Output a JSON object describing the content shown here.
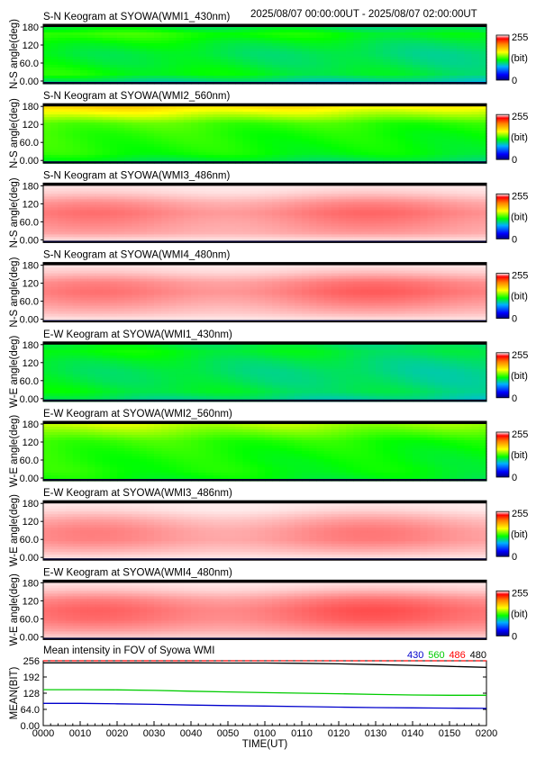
{
  "header": {
    "time_range": "2025/08/07 00:00:00UT - 2025/08/07 02:00:00UT"
  },
  "colorbar": {
    "max_label": "255",
    "min_label": "0",
    "unit": "(bit)"
  },
  "keograms": [
    {
      "title": "S-N Keogram at SYOWA(WMI1_430nm)",
      "ylabel": "N-S angle(deg)",
      "colormap": "rainbow",
      "yticks": [
        "180",
        "120",
        "60.0",
        "0.00"
      ],
      "mean_profile": [
        0.35,
        0.62,
        0.55,
        0.52,
        0.58,
        0.7,
        0.45
      ],
      "trend_start": 0.95,
      "trend_end": 0.7
    },
    {
      "title": "S-N Keogram at SYOWA(WMI2_560nm)",
      "ylabel": "N-S angle(deg)",
      "colormap": "rainbow",
      "yticks": [
        "180",
        "120",
        "60.0",
        "0.00"
      ],
      "mean_profile": [
        0.45,
        0.6,
        0.62,
        0.64,
        0.7,
        0.95,
        1.2
      ],
      "trend_start": 1.0,
      "trend_end": 0.85
    },
    {
      "title": "S-N Keogram at SYOWA(WMI3_486nm)",
      "ylabel": "N-S angle(deg)",
      "colormap": "red",
      "yticks": [
        "180",
        "120",
        "60.0",
        "0.00"
      ],
      "mean_profile": [
        0.05,
        0.45,
        0.55,
        0.65,
        0.5,
        0.2,
        0.05
      ],
      "trend_start": 0.9,
      "trend_end": 1.0
    },
    {
      "title": "S-N Keogram at SYOWA(WMI4_480nm)",
      "ylabel": "N-S angle(deg)",
      "colormap": "red",
      "yticks": [
        "180",
        "120",
        "60.0",
        "0.00"
      ],
      "mean_profile": [
        0.05,
        0.35,
        0.55,
        0.7,
        0.6,
        0.25,
        0.05
      ],
      "trend_start": 0.8,
      "trend_end": 1.05
    },
    {
      "title": "E-W Keogram at SYOWA(WMI1_430nm)",
      "ylabel": "W-E angle(deg)",
      "colormap": "rainbow",
      "yticks": [
        "180",
        "120",
        "60.0",
        "0.00"
      ],
      "mean_profile": [
        0.4,
        0.55,
        0.5,
        0.48,
        0.52,
        0.6,
        0.5
      ],
      "trend_start": 0.95,
      "trend_end": 0.7
    },
    {
      "title": "E-W Keogram at SYOWA(WMI2_560nm)",
      "ylabel": "W-E angle(deg)",
      "colormap": "rainbow",
      "yticks": [
        "180",
        "120",
        "60.0",
        "0.00"
      ],
      "mean_profile": [
        0.55,
        0.6,
        0.6,
        0.62,
        0.66,
        0.8,
        0.95
      ],
      "trend_start": 1.0,
      "trend_end": 0.85
    },
    {
      "title": "E-W Keogram at SYOWA(WMI3_486nm)",
      "ylabel": "W-E angle(deg)",
      "colormap": "red",
      "yticks": [
        "180",
        "120",
        "60.0",
        "0.00"
      ],
      "mean_profile": [
        0.05,
        0.35,
        0.55,
        0.55,
        0.4,
        0.15,
        0.05
      ],
      "trend_start": 0.9,
      "trend_end": 1.0
    },
    {
      "title": "E-W Keogram at SYOWA(WMI4_480nm)",
      "ylabel": "W-E angle(deg)",
      "colormap": "red",
      "yticks": [
        "180",
        "120",
        "60.0",
        "0.00"
      ],
      "mean_profile": [
        0.15,
        0.5,
        0.7,
        0.75,
        0.6,
        0.25,
        0.05
      ],
      "trend_start": 0.85,
      "trend_end": 1.05
    }
  ],
  "chart_data": {
    "type": "line",
    "title": "Mean intensity in FOV of Syowa WMI",
    "xlabel": "TIME(UT)",
    "ylabel": "MEAN(BIT)",
    "xticks": [
      "0000",
      "0010",
      "0020",
      "0030",
      "0040",
      "0050",
      "0100",
      "0110",
      "0120",
      "0130",
      "0140",
      "0150",
      "0200"
    ],
    "yticks": [
      "256",
      "192",
      "128",
      "64.0",
      "0.00"
    ],
    "xlim_minutes": [
      0,
      120
    ],
    "ylim": [
      0,
      256
    ],
    "x_minutes": [
      0,
      10,
      20,
      30,
      40,
      50,
      60,
      70,
      80,
      90,
      100,
      110,
      120
    ],
    "series": [
      {
        "name": "430",
        "color": "#0000cc",
        "values": [
          88,
          88,
          86,
          84,
          81,
          79,
          77,
          75,
          73,
          71,
          70,
          69,
          68
        ]
      },
      {
        "name": "560",
        "color": "#00cc00",
        "values": [
          142,
          142,
          141,
          139,
          136,
          133,
          130,
          128,
          126,
          123,
          121,
          120,
          120
        ]
      },
      {
        "name": "486",
        "color": "#ff0000",
        "values": [
          256,
          256,
          256,
          256,
          256,
          256,
          256,
          256,
          256,
          256,
          256,
          256,
          256
        ]
      },
      {
        "name": "480",
        "color": "#000000",
        "values": [
          248,
          248,
          248,
          248,
          248,
          247,
          247,
          246,
          244,
          241,
          238,
          234,
          230
        ]
      }
    ]
  }
}
